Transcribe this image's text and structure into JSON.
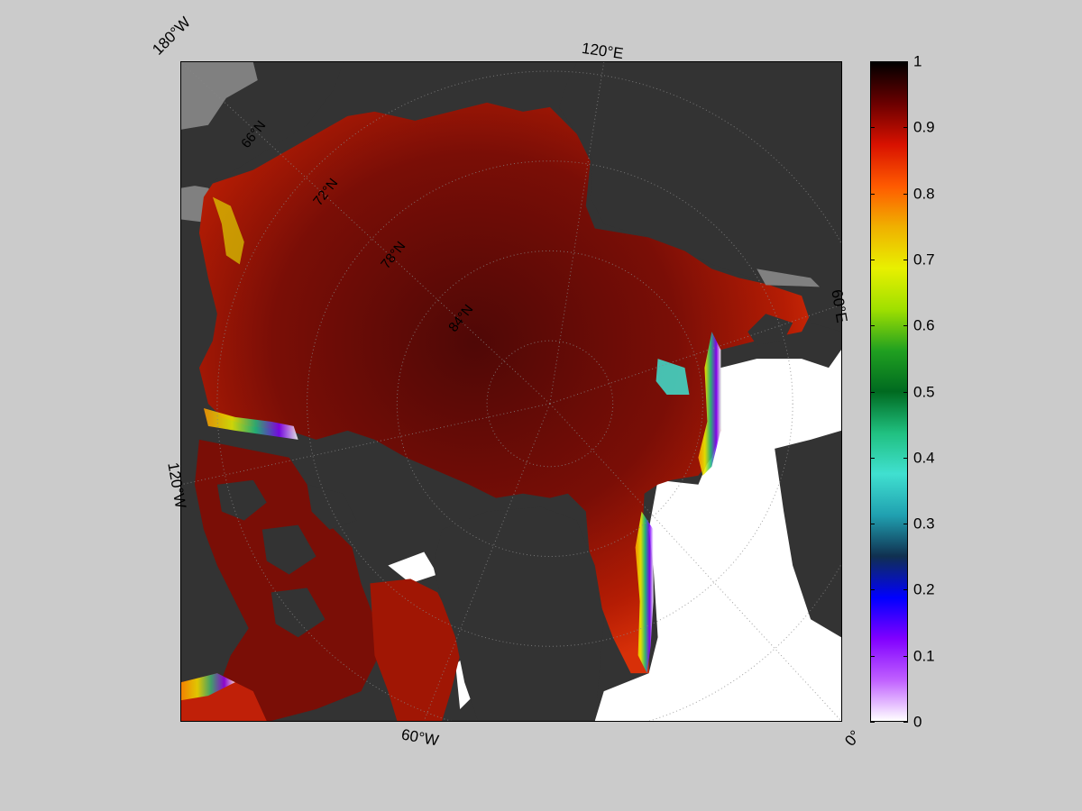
{
  "map": {
    "type": "polar-stereographic",
    "variable_range": [
      0,
      1
    ],
    "longitude_labels": [
      {
        "id": "lon-180w",
        "text": "180°W"
      },
      {
        "id": "lon-120e",
        "text": "120°E"
      },
      {
        "id": "lon-60e",
        "text": "60°E"
      },
      {
        "id": "lon-120w",
        "text": "120°W"
      },
      {
        "id": "lon-60w",
        "text": "60°W"
      },
      {
        "id": "lon-0",
        "text": "0°"
      }
    ],
    "latitude_labels": [
      {
        "id": "lat-66n",
        "text": "66°N"
      },
      {
        "id": "lat-72n",
        "text": "72°N"
      },
      {
        "id": "lat-78n",
        "text": "78°N"
      },
      {
        "id": "lat-84n",
        "text": "84°N"
      }
    ],
    "colors": {
      "background": "#cbcbcb",
      "land": "#333333",
      "unmapped_region": "#808080",
      "open_water": "#ffffff",
      "ice_high": "#5a0a06",
      "ice_mid": "#b01a04"
    }
  },
  "colorbar": {
    "ticks": [
      "1",
      "0.9",
      "0.8",
      "0.7",
      "0.6",
      "0.5",
      "0.4",
      "0.3",
      "0.2",
      "0.1",
      "0"
    ],
    "colormap": [
      "#000000",
      "#6b0000",
      "#d81100",
      "#ff5a00",
      "#f0b000",
      "#e8f000",
      "#a0e000",
      "#20a020",
      "#006a20",
      "#20c080",
      "#40e0d0",
      "#20a0b0",
      "#103050",
      "#0000ff",
      "#8000ff",
      "#c060ff",
      "#ffffff"
    ]
  }
}
